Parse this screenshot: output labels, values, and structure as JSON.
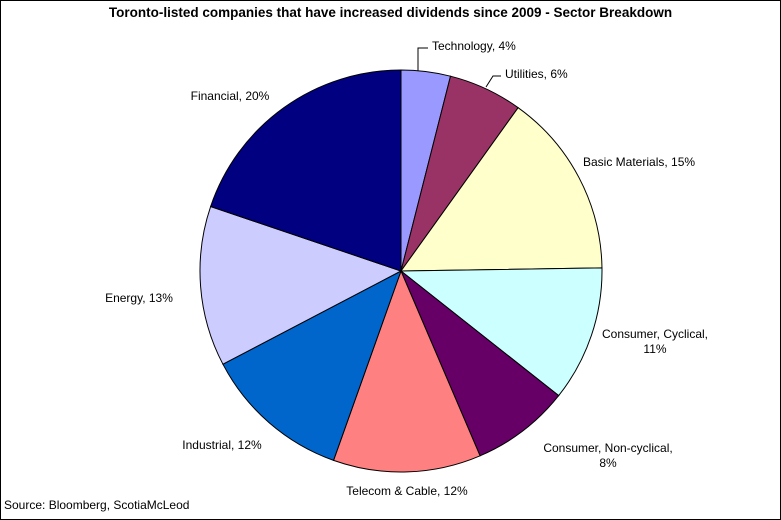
{
  "chart_data": {
    "type": "pie",
    "title": "Toronto-listed companies that have increased dividends since 2009 - Sector Breakdown",
    "slices": [
      {
        "label": "Technology, 4%",
        "value": 4,
        "color": "#9999FF"
      },
      {
        "label": "Utilities, 6%",
        "value": 6,
        "color": "#993366"
      },
      {
        "label": "Basic Materials, 15%",
        "value": 15,
        "color": "#FFFFCC"
      },
      {
        "label": "Consumer, Cyclical, 11%",
        "label_lines": [
          "Consumer, Cyclical,",
          "11%"
        ],
        "value": 11,
        "color": "#CCFFFF"
      },
      {
        "label": "Consumer, Non-cyclical, 8%",
        "label_lines": [
          "Consumer, Non-cyclical,",
          "8%"
        ],
        "value": 8,
        "color": "#660066"
      },
      {
        "label": "Telecom & Cable, 12%",
        "value": 12,
        "color": "#FF8080"
      },
      {
        "label": "Industrial, 12%",
        "value": 12,
        "color": "#0066CC"
      },
      {
        "label": "Energy, 13%",
        "value": 13,
        "color": "#CCCCFF"
      },
      {
        "label": "Financial, 20%",
        "value": 20,
        "color": "#000080"
      }
    ],
    "start": "12 o'clock",
    "direction": "clockwise",
    "legend": "none",
    "slice_outline_color": "#000000"
  },
  "source": "Source: Bloomberg, ScotiaMcLeod"
}
